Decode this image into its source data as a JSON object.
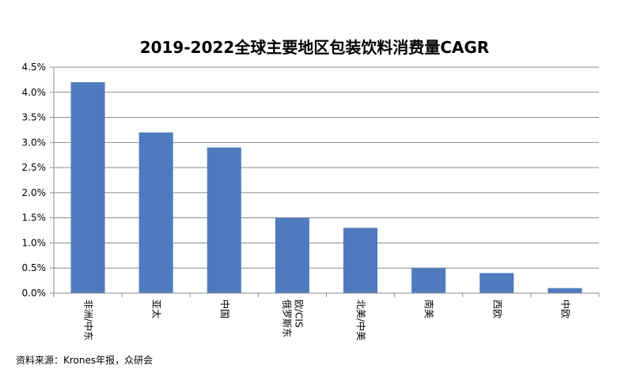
{
  "chart_data": {
    "type": "bar",
    "title": "2019-2022全球主要地区包装饮料消费量CAGR",
    "categories": [
      "非洲/中东",
      "亚太",
      "中国",
      "俄罗斯/东欧/CIS",
      "北美/中美",
      "南美",
      "西欧",
      "中欧"
    ],
    "category_label_lines": [
      [
        "非洲/中东"
      ],
      [
        "亚太"
      ],
      [
        "中国"
      ],
      [
        "俄罗斯东",
        "欧/CIS"
      ],
      [
        "北美/中美"
      ],
      [
        "南美"
      ],
      [
        "西欧"
      ],
      [
        "中欧"
      ]
    ],
    "values": [
      4.2,
      3.2,
      2.9,
      1.5,
      1.3,
      0.5,
      0.4,
      0.1
    ],
    "value_unit": "%",
    "ylim": [
      0,
      4.5
    ],
    "yticks": [
      "0.0%",
      "0.5%",
      "1.0%",
      "1.5%",
      "2.0%",
      "2.5%",
      "3.0%",
      "3.5%",
      "4.0%",
      "4.5%"
    ],
    "xlabel": "",
    "ylabel": "",
    "grid": true,
    "legend": "none",
    "bar_color": "#4F7BBE"
  },
  "source": "资料来源：Krones年报，众研会"
}
